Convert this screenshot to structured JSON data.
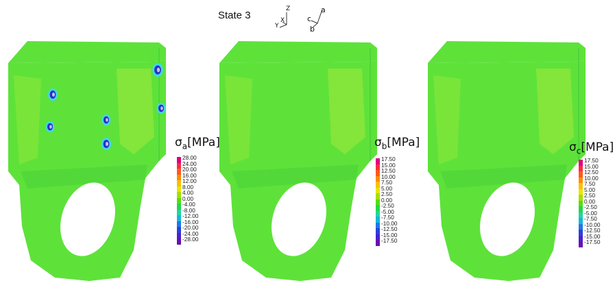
{
  "header": {
    "title": "State 3",
    "global_axes": {
      "z": "Z",
      "x": "X",
      "y": "Y"
    },
    "local_axes": {
      "a": "a",
      "b": "b",
      "c": "c"
    }
  },
  "panels": [
    {
      "id": "a",
      "legend_symbol": "σ",
      "legend_sub": "a",
      "legend_unit": "[MPa]",
      "ticks": [
        "28.00",
        "24.00",
        "20.00",
        "16.00",
        "12.00",
        "8.00",
        "4.00",
        "0.00",
        "-4.00",
        "-8.00",
        "-12.00",
        "-16.00",
        "-20.00",
        "-24.00",
        "-28.00"
      ]
    },
    {
      "id": "b",
      "legend_symbol": "σ",
      "legend_sub": "b",
      "legend_unit": "[MPa]",
      "ticks": [
        "17.50",
        "15.00",
        "12.50",
        "10.00",
        "7.50",
        "5.00",
        "2.50",
        "0.00",
        "-2.50",
        "-5.00",
        "-7.50",
        "-10.00",
        "-12.50",
        "-15.00",
        "-17.50"
      ]
    },
    {
      "id": "c",
      "legend_symbol": "σ",
      "legend_sub": "c",
      "legend_unit": "[MPa]",
      "ticks": [
        "17.50",
        "15.00",
        "12.50",
        "10.00",
        "7.50",
        "5.00",
        "2.50",
        "0.00",
        "-2.50",
        "-5.00",
        "-7.50",
        "-10.00",
        "-12.50",
        "-15.00",
        "-17.50"
      ]
    }
  ],
  "colors": {
    "scale": [
      "#e0007f",
      "#ff2a40",
      "#ff5a1e",
      "#ff8c00",
      "#ffbf00",
      "#e6e600",
      "#a6e000",
      "#55e000",
      "#22d84a",
      "#1fd6a0",
      "#15b8d8",
      "#1e78e6",
      "#2a40e0",
      "#4a20d0",
      "#6a10b0"
    ],
    "body_base": "#5ee23a",
    "body_light": "#9ee83a",
    "body_dark": "#3cc83a",
    "hot_red": "#e8102a",
    "hot_orange": "#ff7a10",
    "hot_yellow": "#f0e020",
    "bolt_blue": "#2a30c8",
    "bolt_cyan": "#40d8e8"
  }
}
